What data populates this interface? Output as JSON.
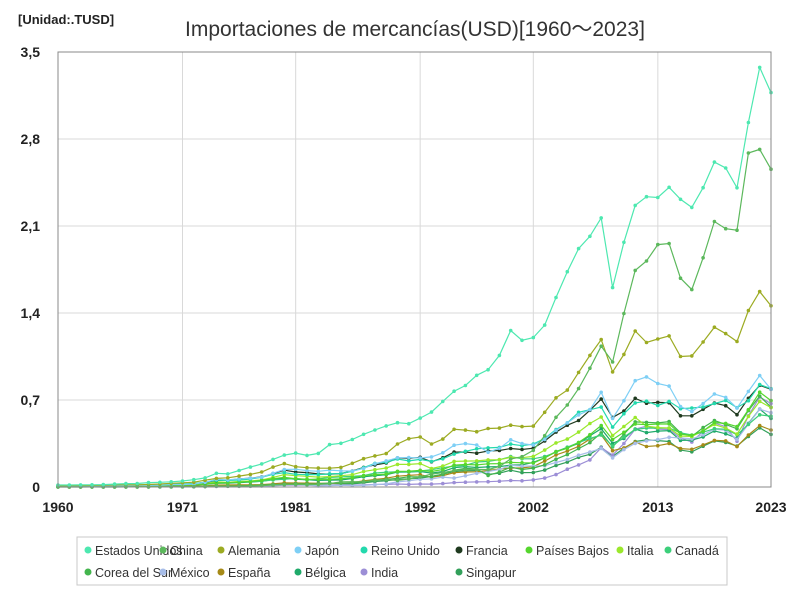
{
  "chart_data": {
    "type": "line",
    "title": "Importaciones de mercancías(USD)[1960～2023]",
    "unit_label": "[Unidad:.TUSD]",
    "xlabel": "",
    "ylabel": "",
    "x": [
      1960,
      1961,
      1962,
      1963,
      1964,
      1965,
      1966,
      1967,
      1968,
      1969,
      1970,
      1971,
      1972,
      1973,
      1974,
      1975,
      1976,
      1977,
      1978,
      1979,
      1980,
      1981,
      1982,
      1983,
      1984,
      1985,
      1986,
      1987,
      1988,
      1989,
      1990,
      1991,
      1992,
      1993,
      1994,
      1995,
      1996,
      1997,
      1998,
      1999,
      2000,
      2001,
      2002,
      2003,
      2004,
      2005,
      2006,
      2007,
      2008,
      2009,
      2010,
      2011,
      2012,
      2013,
      2014,
      2015,
      2016,
      2017,
      2018,
      2019,
      2020,
      2021,
      2022,
      2023
    ],
    "xlim": [
      1960,
      2023
    ],
    "ylim": [
      0,
      3.5
    ],
    "x_ticks": [
      1960,
      1971,
      1981,
      1992,
      2002,
      2013,
      2023
    ],
    "y_ticks": [
      0,
      0.7,
      1.4,
      2.1,
      2.8,
      3.5
    ],
    "x_tick_labels": [
      "1960",
      "1971",
      "1981",
      "1992",
      "2002",
      "2013",
      "2023"
    ],
    "y_tick_labels": [
      "0",
      "0,7",
      "1,4",
      "2,1",
      "2,8",
      "3,5"
    ],
    "grid": {
      "x": true,
      "y": true
    },
    "legend_position": "bottom",
    "series": [
      {
        "name": "Estados Unidos",
        "color": "#4de8b0",
        "values": [
          0.016,
          0.016,
          0.017,
          0.018,
          0.019,
          0.023,
          0.027,
          0.028,
          0.035,
          0.038,
          0.042,
          0.048,
          0.059,
          0.073,
          0.11,
          0.105,
          0.133,
          0.16,
          0.186,
          0.222,
          0.257,
          0.273,
          0.254,
          0.27,
          0.341,
          0.352,
          0.382,
          0.424,
          0.459,
          0.492,
          0.517,
          0.509,
          0.554,
          0.603,
          0.689,
          0.771,
          0.817,
          0.899,
          0.944,
          1.059,
          1.259,
          1.18,
          1.202,
          1.303,
          1.525,
          1.732,
          1.918,
          2.017,
          2.165,
          1.604,
          1.969,
          2.266,
          2.336,
          2.329,
          2.411,
          2.315,
          2.25,
          2.408,
          2.614,
          2.567,
          2.407,
          2.933,
          3.376,
          3.173
        ]
      },
      {
        "name": "China",
        "color": "#5cb85c",
        "values": [
          0.002,
          0.002,
          0.001,
          0.001,
          0.002,
          0.002,
          0.002,
          0.002,
          0.002,
          0.002,
          0.002,
          0.002,
          0.003,
          0.005,
          0.008,
          0.007,
          0.007,
          0.007,
          0.011,
          0.016,
          0.02,
          0.022,
          0.019,
          0.021,
          0.027,
          0.042,
          0.043,
          0.043,
          0.055,
          0.059,
          0.053,
          0.064,
          0.081,
          0.104,
          0.116,
          0.132,
          0.139,
          0.142,
          0.14,
          0.166,
          0.225,
          0.244,
          0.295,
          0.413,
          0.561,
          0.66,
          0.792,
          0.956,
          1.133,
          1.006,
          1.396,
          1.743,
          1.818,
          1.95,
          1.959,
          1.68,
          1.588,
          1.844,
          2.136,
          2.078,
          2.066,
          2.687,
          2.716,
          2.557
        ]
      },
      {
        "name": "Alemania",
        "color": "#9cab22",
        "values": [
          0.01,
          0.011,
          0.012,
          0.013,
          0.014,
          0.017,
          0.018,
          0.017,
          0.02,
          0.024,
          0.03,
          0.034,
          0.039,
          0.055,
          0.069,
          0.074,
          0.088,
          0.101,
          0.121,
          0.16,
          0.188,
          0.163,
          0.155,
          0.152,
          0.151,
          0.158,
          0.191,
          0.228,
          0.25,
          0.269,
          0.346,
          0.389,
          0.402,
          0.346,
          0.385,
          0.464,
          0.458,
          0.445,
          0.471,
          0.474,
          0.497,
          0.486,
          0.49,
          0.601,
          0.718,
          0.78,
          0.922,
          1.059,
          1.186,
          0.926,
          1.067,
          1.255,
          1.163,
          1.191,
          1.216,
          1.05,
          1.055,
          1.167,
          1.286,
          1.234,
          1.171,
          1.42,
          1.572,
          1.458
        ]
      },
      {
        "name": "Japón",
        "color": "#7ecff5",
        "values": [
          0.004,
          0.006,
          0.006,
          0.007,
          0.008,
          0.008,
          0.01,
          0.012,
          0.013,
          0.015,
          0.019,
          0.02,
          0.023,
          0.038,
          0.062,
          0.058,
          0.065,
          0.071,
          0.08,
          0.11,
          0.141,
          0.143,
          0.132,
          0.126,
          0.136,
          0.13,
          0.128,
          0.15,
          0.187,
          0.21,
          0.235,
          0.237,
          0.233,
          0.242,
          0.275,
          0.336,
          0.349,
          0.338,
          0.28,
          0.311,
          0.38,
          0.349,
          0.337,
          0.383,
          0.455,
          0.516,
          0.58,
          0.622,
          0.762,
          0.551,
          0.694,
          0.855,
          0.886,
          0.833,
          0.812,
          0.648,
          0.607,
          0.672,
          0.748,
          0.721,
          0.635,
          0.769,
          0.897,
          0.786
        ]
      },
      {
        "name": "Reino Unido",
        "color": "#23d9ad",
        "values": [
          0.013,
          0.012,
          0.012,
          0.013,
          0.015,
          0.016,
          0.016,
          0.017,
          0.018,
          0.019,
          0.022,
          0.024,
          0.028,
          0.039,
          0.055,
          0.053,
          0.056,
          0.064,
          0.078,
          0.102,
          0.116,
          0.102,
          0.1,
          0.1,
          0.105,
          0.109,
          0.126,
          0.155,
          0.19,
          0.199,
          0.225,
          0.21,
          0.222,
          0.206,
          0.227,
          0.265,
          0.287,
          0.307,
          0.315,
          0.319,
          0.345,
          0.332,
          0.345,
          0.39,
          0.463,
          0.516,
          0.601,
          0.622,
          0.643,
          0.482,
          0.59,
          0.677,
          0.69,
          0.656,
          0.689,
          0.63,
          0.636,
          0.644,
          0.672,
          0.696,
          0.638,
          0.694,
          0.824,
          0.791
        ]
      },
      {
        "name": "Francia",
        "color": "#1f3a1f",
        "values": [
          0.006,
          0.007,
          0.008,
          0.009,
          0.01,
          0.01,
          0.012,
          0.012,
          0.014,
          0.017,
          0.019,
          0.021,
          0.026,
          0.037,
          0.053,
          0.054,
          0.065,
          0.071,
          0.081,
          0.107,
          0.135,
          0.121,
          0.116,
          0.105,
          0.104,
          0.108,
          0.129,
          0.158,
          0.178,
          0.193,
          0.234,
          0.231,
          0.239,
          0.203,
          0.235,
          0.281,
          0.282,
          0.272,
          0.29,
          0.294,
          0.31,
          0.302,
          0.312,
          0.37,
          0.442,
          0.497,
          0.535,
          0.617,
          0.707,
          0.56,
          0.611,
          0.714,
          0.674,
          0.681,
          0.678,
          0.573,
          0.573,
          0.625,
          0.676,
          0.654,
          0.582,
          0.714,
          0.818,
          0.786
        ]
      },
      {
        "name": "Países Bajos",
        "color": "#55d62e",
        "values": [
          0.005,
          0.005,
          0.006,
          0.006,
          0.007,
          0.008,
          0.008,
          0.009,
          0.009,
          0.011,
          0.013,
          0.015,
          0.017,
          0.024,
          0.033,
          0.035,
          0.039,
          0.045,
          0.053,
          0.067,
          0.077,
          0.067,
          0.063,
          0.062,
          0.062,
          0.066,
          0.075,
          0.091,
          0.099,
          0.104,
          0.126,
          0.127,
          0.134,
          0.125,
          0.141,
          0.176,
          0.181,
          0.178,
          0.187,
          0.188,
          0.198,
          0.195,
          0.193,
          0.234,
          0.284,
          0.311,
          0.358,
          0.421,
          0.495,
          0.382,
          0.44,
          0.507,
          0.501,
          0.507,
          0.508,
          0.425,
          0.416,
          0.45,
          0.518,
          0.512,
          0.486,
          0.622,
          0.763,
          0.695
        ]
      },
      {
        "name": "Italia",
        "color": "#9be82c",
        "values": [
          0.005,
          0.005,
          0.006,
          0.007,
          0.007,
          0.007,
          0.008,
          0.009,
          0.01,
          0.012,
          0.015,
          0.016,
          0.019,
          0.028,
          0.041,
          0.038,
          0.044,
          0.048,
          0.057,
          0.077,
          0.1,
          0.091,
          0.086,
          0.08,
          0.084,
          0.091,
          0.099,
          0.125,
          0.139,
          0.153,
          0.182,
          0.182,
          0.188,
          0.148,
          0.169,
          0.206,
          0.208,
          0.21,
          0.218,
          0.22,
          0.238,
          0.236,
          0.246,
          0.297,
          0.355,
          0.385,
          0.442,
          0.511,
          0.563,
          0.414,
          0.487,
          0.559,
          0.49,
          0.478,
          0.474,
          0.41,
          0.406,
          0.453,
          0.503,
          0.475,
          0.426,
          0.568,
          0.689,
          0.639
        ]
      },
      {
        "name": "Canadá",
        "color": "#3ccf7a",
        "values": [
          0.006,
          0.006,
          0.006,
          0.007,
          0.007,
          0.008,
          0.009,
          0.01,
          0.011,
          0.013,
          0.014,
          0.015,
          0.019,
          0.024,
          0.033,
          0.036,
          0.04,
          0.042,
          0.046,
          0.057,
          0.062,
          0.069,
          0.056,
          0.064,
          0.077,
          0.081,
          0.085,
          0.092,
          0.112,
          0.119,
          0.123,
          0.124,
          0.129,
          0.139,
          0.155,
          0.168,
          0.175,
          0.201,
          0.206,
          0.22,
          0.245,
          0.227,
          0.227,
          0.245,
          0.28,
          0.32,
          0.358,
          0.39,
          0.418,
          0.33,
          0.402,
          0.463,
          0.475,
          0.474,
          0.475,
          0.436,
          0.418,
          0.441,
          0.469,
          0.465,
          0.42,
          0.504,
          0.581,
          0.57
        ]
      },
      {
        "name": "Corea del Sur",
        "color": "#43b54d",
        "values": [
          0.0,
          0.0,
          0.0,
          0.001,
          0.0,
          0.0,
          0.001,
          0.001,
          0.001,
          0.002,
          0.002,
          0.002,
          0.003,
          0.004,
          0.007,
          0.007,
          0.009,
          0.011,
          0.015,
          0.02,
          0.022,
          0.026,
          0.024,
          0.026,
          0.031,
          0.031,
          0.032,
          0.041,
          0.052,
          0.062,
          0.07,
          0.082,
          0.082,
          0.084,
          0.102,
          0.135,
          0.15,
          0.145,
          0.093,
          0.12,
          0.16,
          0.141,
          0.152,
          0.179,
          0.224,
          0.261,
          0.309,
          0.357,
          0.435,
          0.323,
          0.425,
          0.524,
          0.52,
          0.516,
          0.526,
          0.436,
          0.406,
          0.478,
          0.535,
          0.503,
          0.468,
          0.615,
          0.731,
          0.642
        ]
      },
      {
        "name": "México",
        "color": "#a7bde8",
        "values": [
          0.001,
          0.001,
          0.001,
          0.001,
          0.001,
          0.002,
          0.002,
          0.002,
          0.002,
          0.002,
          0.002,
          0.002,
          0.003,
          0.004,
          0.006,
          0.007,
          0.006,
          0.006,
          0.008,
          0.012,
          0.019,
          0.024,
          0.015,
          0.009,
          0.011,
          0.014,
          0.012,
          0.013,
          0.019,
          0.025,
          0.041,
          0.05,
          0.062,
          0.065,
          0.08,
          0.072,
          0.09,
          0.11,
          0.125,
          0.142,
          0.174,
          0.168,
          0.169,
          0.171,
          0.197,
          0.222,
          0.256,
          0.282,
          0.31,
          0.234,
          0.301,
          0.351,
          0.371,
          0.381,
          0.4,
          0.395,
          0.387,
          0.42,
          0.465,
          0.456,
          0.383,
          0.506,
          0.626,
          0.598
        ]
      },
      {
        "name": "España",
        "color": "#a68a17",
        "values": [
          0.001,
          0.001,
          0.002,
          0.002,
          0.002,
          0.003,
          0.004,
          0.004,
          0.004,
          0.005,
          0.005,
          0.005,
          0.007,
          0.01,
          0.015,
          0.016,
          0.017,
          0.018,
          0.019,
          0.025,
          0.034,
          0.032,
          0.031,
          0.029,
          0.029,
          0.03,
          0.035,
          0.049,
          0.06,
          0.071,
          0.087,
          0.093,
          0.099,
          0.079,
          0.092,
          0.115,
          0.121,
          0.122,
          0.133,
          0.145,
          0.153,
          0.154,
          0.163,
          0.208,
          0.258,
          0.289,
          0.327,
          0.385,
          0.419,
          0.292,
          0.315,
          0.362,
          0.326,
          0.332,
          0.35,
          0.309,
          0.303,
          0.339,
          0.375,
          0.371,
          0.325,
          0.418,
          0.494,
          0.459
        ]
      },
      {
        "name": "Bélgica",
        "color": "#1faa6a",
        "values": [
          0.004,
          0.004,
          0.004,
          0.005,
          0.005,
          0.006,
          0.006,
          0.007,
          0.008,
          0.009,
          0.011,
          0.013,
          0.015,
          0.021,
          0.03,
          0.031,
          0.035,
          0.04,
          0.046,
          0.06,
          0.071,
          0.062,
          0.058,
          0.053,
          0.055,
          0.056,
          0.068,
          0.082,
          0.092,
          0.098,
          0.12,
          0.121,
          0.125,
          0.112,
          0.125,
          0.155,
          0.164,
          0.157,
          0.162,
          0.164,
          0.176,
          0.178,
          0.198,
          0.235,
          0.285,
          0.318,
          0.351,
          0.413,
          0.469,
          0.352,
          0.39,
          0.466,
          0.438,
          0.45,
          0.454,
          0.375,
          0.377,
          0.403,
          0.451,
          0.428,
          0.393,
          0.512,
          0.627,
          0.552
        ]
      },
      {
        "name": "India",
        "color": "#9c8ed6",
        "values": [
          0.002,
          0.002,
          0.002,
          0.002,
          0.003,
          0.003,
          0.003,
          0.003,
          0.002,
          0.002,
          0.002,
          0.003,
          0.002,
          0.003,
          0.005,
          0.006,
          0.006,
          0.007,
          0.008,
          0.01,
          0.015,
          0.016,
          0.015,
          0.014,
          0.015,
          0.016,
          0.016,
          0.017,
          0.02,
          0.021,
          0.024,
          0.021,
          0.024,
          0.023,
          0.027,
          0.035,
          0.039,
          0.041,
          0.043,
          0.047,
          0.052,
          0.05,
          0.057,
          0.072,
          0.1,
          0.143,
          0.178,
          0.218,
          0.316,
          0.257,
          0.35,
          0.465,
          0.49,
          0.466,
          0.463,
          0.394,
          0.361,
          0.449,
          0.514,
          0.486,
          0.368,
          0.573,
          0.723,
          0.672
        ]
      },
      {
        "name": "Singapur",
        "color": "#32a05a",
        "values": [
          0.001,
          0.001,
          0.001,
          0.001,
          0.001,
          0.001,
          0.001,
          0.001,
          0.002,
          0.002,
          0.002,
          0.003,
          0.003,
          0.005,
          0.008,
          0.008,
          0.009,
          0.011,
          0.013,
          0.017,
          0.024,
          0.028,
          0.029,
          0.028,
          0.029,
          0.026,
          0.026,
          0.033,
          0.044,
          0.05,
          0.061,
          0.066,
          0.072,
          0.085,
          0.103,
          0.124,
          0.131,
          0.132,
          0.101,
          0.111,
          0.135,
          0.116,
          0.117,
          0.136,
          0.173,
          0.2,
          0.239,
          0.263,
          0.32,
          0.246,
          0.311,
          0.366,
          0.38,
          0.373,
          0.366,
          0.297,
          0.283,
          0.328,
          0.371,
          0.359,
          0.33,
          0.406,
          0.476,
          0.423
        ]
      }
    ]
  }
}
